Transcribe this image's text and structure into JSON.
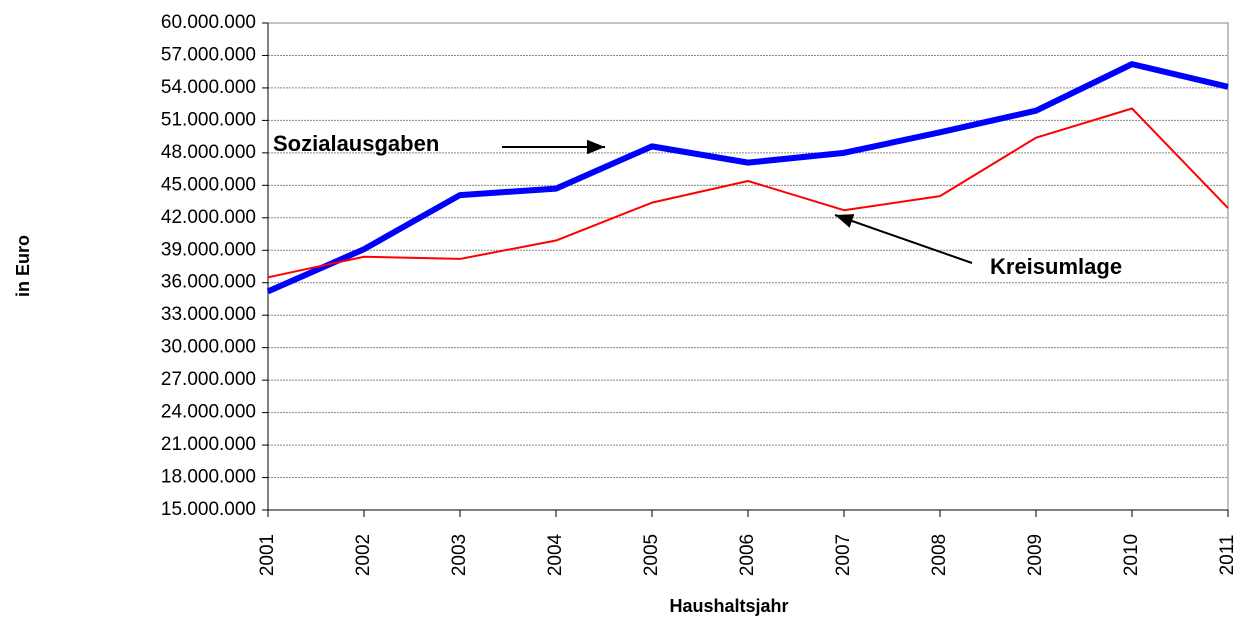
{
  "chart_data": {
    "type": "line",
    "x_label": "Haushaltsjahr",
    "y_label": "in Euro",
    "x": [
      2001,
      2002,
      2003,
      2004,
      2005,
      2006,
      2007,
      2008,
      2009,
      2010,
      2011
    ],
    "xlim": [
      2001,
      2011
    ],
    "xticks": [
      2001,
      2002,
      2003,
      2004,
      2005,
      2006,
      2007,
      2008,
      2009,
      2010,
      2011
    ],
    "ylim": [
      15000000,
      60000000
    ],
    "yticks": [
      {
        "value": 15000000,
        "label": "15.000.000"
      },
      {
        "value": 18000000,
        "label": "18.000.000"
      },
      {
        "value": 21000000,
        "label": "21.000.000"
      },
      {
        "value": 24000000,
        "label": "24.000.000"
      },
      {
        "value": 27000000,
        "label": "27.000.000"
      },
      {
        "value": 30000000,
        "label": "30.000.000"
      },
      {
        "value": 33000000,
        "label": "33.000.000"
      },
      {
        "value": 36000000,
        "label": "36.000.000"
      },
      {
        "value": 39000000,
        "label": "39.000.000"
      },
      {
        "value": 42000000,
        "label": "42.000.000"
      },
      {
        "value": 45000000,
        "label": "45.000.000"
      },
      {
        "value": 48000000,
        "label": "48.000.000"
      },
      {
        "value": 51000000,
        "label": "51.000.000"
      },
      {
        "value": 54000000,
        "label": "54.000.000"
      },
      {
        "value": 57000000,
        "label": "57.000.000"
      },
      {
        "value": 60000000,
        "label": "60.000.000"
      }
    ],
    "grid": true,
    "series": [
      {
        "name": "Sozialausgaben",
        "color": "#0000ff",
        "values": [
          35200000,
          39100000,
          44100000,
          44700000,
          48600000,
          47100000,
          48000000,
          49900000,
          51900000,
          56200000,
          54100000
        ]
      },
      {
        "name": "Kreisumlage",
        "color": "#ff0000",
        "values": [
          36500000,
          38400000,
          38200000,
          39900000,
          43400000,
          45400000,
          42700000,
          44000000,
          49400000,
          52100000,
          42900000
        ]
      }
    ]
  }
}
